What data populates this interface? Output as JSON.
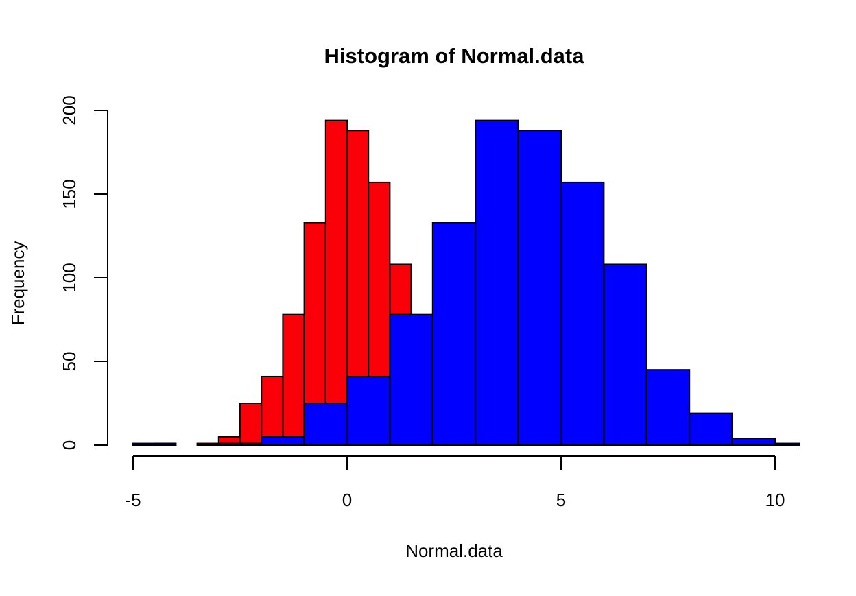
{
  "chart_data": [
    {
      "type": "bar",
      "title": "Histogram of Normal.data",
      "xlabel": "Normal.data",
      "ylabel": "Frequency",
      "xlim": [
        -5.6,
        10.6
      ],
      "ylim": [
        0,
        200
      ],
      "x_ticks": [
        "-5",
        "0",
        "5",
        "10"
      ],
      "y_ticks": [
        "0",
        "50",
        "100",
        "150",
        "200"
      ],
      "grid": false,
      "series": [
        {
          "color": "#FA0008",
          "bin_width": 0.5,
          "breaks_start": -4.5,
          "values": [
            1,
            0,
            1,
            5,
            25,
            41,
            78,
            133,
            194,
            188,
            157,
            108,
            45,
            19,
            4,
            1
          ]
        },
        {
          "color": "#0000FF",
          "bin_width": 1,
          "breaks_start": -5,
          "values": [
            1,
            0,
            1,
            5,
            25,
            41,
            78,
            133,
            194,
            188,
            157,
            108,
            45,
            19,
            4,
            1
          ]
        }
      ]
    }
  ]
}
